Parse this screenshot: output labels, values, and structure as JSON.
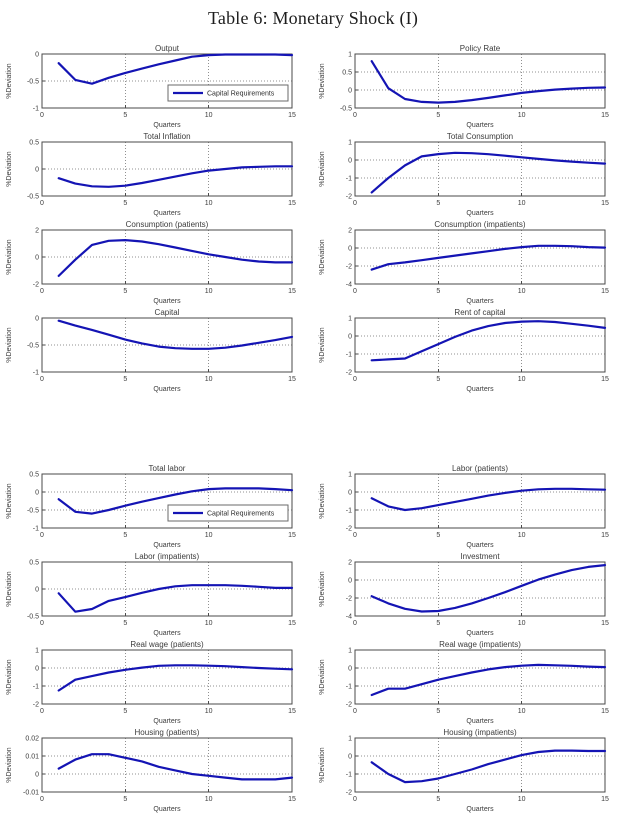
{
  "page": {
    "title": "Table 6: Monetary Shock (I)"
  },
  "legend_label": "Capital Requirements",
  "axis": {
    "xlabel": "Quarters",
    "ylabel": "%Deviation",
    "xlim": [
      0,
      15
    ],
    "xticks": [
      0,
      5,
      10,
      15
    ],
    "xtick_labels": [
      "0",
      "5",
      "10",
      "15"
    ],
    "grid": "dotted"
  },
  "colors": {
    "line": "#1414b4",
    "frame": "#4a4a4a",
    "grid": "#909090",
    "text": "#3c3c3c",
    "legend_border": "#6a6a6a",
    "background": "#ffffff"
  },
  "chart_data": [
    {
      "type": "line",
      "title": "Output",
      "xlabel": "Quarters",
      "ylabel": "%Deviation",
      "x": [
        1,
        2,
        3,
        4,
        5,
        6,
        7,
        8,
        9,
        10,
        11,
        12,
        13,
        14,
        15
      ],
      "values": [
        -0.17,
        -0.48,
        -0.55,
        -0.44,
        -0.35,
        -0.27,
        -0.19,
        -0.12,
        -0.05,
        -0.02,
        -0.01,
        -0.01,
        -0.01,
        -0.01,
        -0.02
      ],
      "ylim": [
        -1,
        0
      ],
      "ytick_vals": [
        0,
        -0.5,
        -1
      ],
      "ytick_labels": [
        "0",
        "-0.5",
        "-1"
      ],
      "legend": true
    },
    {
      "type": "line",
      "title": "Policy Rate",
      "xlabel": "Quarters",
      "ylabel": "%Deviation",
      "x": [
        1,
        2,
        3,
        4,
        5,
        6,
        7,
        8,
        9,
        10,
        11,
        12,
        13,
        14,
        15
      ],
      "values": [
        0.8,
        0.05,
        -0.25,
        -0.33,
        -0.35,
        -0.33,
        -0.28,
        -0.22,
        -0.15,
        -0.08,
        -0.03,
        0.01,
        0.04,
        0.06,
        0.07
      ],
      "ylim": [
        -0.5,
        1
      ],
      "ytick_vals": [
        1,
        0.5,
        0,
        -0.5
      ],
      "ytick_labels": [
        "1",
        "0.5",
        "0",
        "-0.5"
      ],
      "legend": false
    },
    {
      "type": "line",
      "title": "Total Inflation",
      "xlabel": "Quarters",
      "ylabel": "%Deviation",
      "x": [
        1,
        2,
        3,
        4,
        5,
        6,
        7,
        8,
        9,
        10,
        11,
        12,
        13,
        14,
        15
      ],
      "values": [
        -0.17,
        -0.27,
        -0.32,
        -0.33,
        -0.31,
        -0.26,
        -0.2,
        -0.14,
        -0.08,
        -0.03,
        0,
        0.03,
        0.04,
        0.05,
        0.05
      ],
      "ylim": [
        -0.5,
        0.5
      ],
      "ytick_vals": [
        0.5,
        0,
        -0.5
      ],
      "ytick_labels": [
        "0.5",
        "0",
        "-0.5"
      ],
      "legend": false
    },
    {
      "type": "line",
      "title": "Total Consumption",
      "xlabel": "Quarters",
      "ylabel": "%Deviation",
      "x": [
        1,
        2,
        3,
        4,
        5,
        6,
        7,
        8,
        9,
        10,
        11,
        12,
        13,
        14,
        15
      ],
      "values": [
        -1.8,
        -1.0,
        -0.3,
        0.2,
        0.33,
        0.4,
        0.38,
        0.32,
        0.24,
        0.15,
        0.06,
        -0.02,
        -0.09,
        -0.15,
        -0.2
      ],
      "ylim": [
        -2,
        1
      ],
      "ytick_vals": [
        1,
        0,
        -1,
        -2
      ],
      "ytick_labels": [
        "1",
        "0",
        "-1",
        "-2"
      ],
      "legend": false
    },
    {
      "type": "line",
      "title": "Consumption (patients)",
      "xlabel": "Quarters",
      "ylabel": "%Deviation",
      "x": [
        1,
        2,
        3,
        4,
        5,
        6,
        7,
        8,
        9,
        10,
        11,
        12,
        13,
        14,
        15
      ],
      "values": [
        -1.4,
        -0.2,
        0.9,
        1.2,
        1.25,
        1.15,
        0.95,
        0.7,
        0.45,
        0.2,
        0,
        -0.2,
        -0.33,
        -0.4,
        -0.4
      ],
      "ylim": [
        -2,
        2
      ],
      "ytick_vals": [
        2,
        0,
        -2
      ],
      "ytick_labels": [
        "2",
        "0",
        "-2"
      ],
      "legend": false
    },
    {
      "type": "line",
      "title": "Consumption (impatients)",
      "xlabel": "Quarters",
      "ylabel": "%Deviation",
      "x": [
        1,
        2,
        3,
        4,
        5,
        6,
        7,
        8,
        9,
        10,
        11,
        12,
        13,
        14,
        15
      ],
      "values": [
        -2.4,
        -1.8,
        -1.6,
        -1.35,
        -1.1,
        -0.85,
        -0.6,
        -0.35,
        -0.1,
        0.1,
        0.25,
        0.25,
        0.2,
        0.1,
        0.05
      ],
      "ylim": [
        -4,
        2
      ],
      "ytick_vals": [
        2,
        0,
        -2,
        -4
      ],
      "ytick_labels": [
        "2",
        "0",
        "-2",
        "-4"
      ],
      "legend": false
    },
    {
      "type": "line",
      "title": "Capital",
      "xlabel": "Quarters",
      "ylabel": "%Deviation",
      "x": [
        1,
        2,
        3,
        4,
        5,
        6,
        7,
        8,
        9,
        10,
        11,
        12,
        13,
        14,
        15
      ],
      "values": [
        -0.05,
        -0.14,
        -0.22,
        -0.31,
        -0.4,
        -0.47,
        -0.53,
        -0.56,
        -0.57,
        -0.57,
        -0.55,
        -0.51,
        -0.46,
        -0.41,
        -0.35
      ],
      "ylim": [
        -1,
        0
      ],
      "ytick_vals": [
        0,
        -0.5,
        -1
      ],
      "ytick_labels": [
        "0",
        "-0.5",
        "-1"
      ],
      "legend": false
    },
    {
      "type": "line",
      "title": "Rent of capital",
      "xlabel": "Quarters",
      "ylabel": "%Deviation",
      "x": [
        1,
        2,
        3,
        4,
        5,
        6,
        7,
        8,
        9,
        10,
        11,
        12,
        13,
        14,
        15
      ],
      "values": [
        -1.35,
        -1.3,
        -1.25,
        -0.85,
        -0.45,
        -0.05,
        0.3,
        0.55,
        0.72,
        0.8,
        0.82,
        0.78,
        0.68,
        0.57,
        0.45
      ],
      "ylim": [
        -2,
        1
      ],
      "ytick_vals": [
        1,
        0,
        -1,
        -2
      ],
      "ytick_labels": [
        "1",
        "0",
        "-1",
        "-2"
      ],
      "legend": false
    },
    {
      "type": "line",
      "title": "Total labor",
      "xlabel": "Quarters",
      "ylabel": "%Deviation",
      "x": [
        1,
        2,
        3,
        4,
        5,
        6,
        7,
        8,
        9,
        10,
        11,
        12,
        13,
        14,
        15
      ],
      "values": [
        -0.2,
        -0.55,
        -0.6,
        -0.5,
        -0.38,
        -0.27,
        -0.17,
        -0.07,
        0.02,
        0.08,
        0.1,
        0.1,
        0.1,
        0.08,
        0.05
      ],
      "ylim": [
        -1,
        0.5
      ],
      "ytick_vals": [
        0.5,
        0,
        -0.5,
        -1
      ],
      "ytick_labels": [
        "0.5",
        "0",
        "-0.5",
        "-1"
      ],
      "legend": true
    },
    {
      "type": "line",
      "title": "Labor (patients)",
      "xlabel": "Quarters",
      "ylabel": "%Deviation",
      "x": [
        1,
        2,
        3,
        4,
        5,
        6,
        7,
        8,
        9,
        10,
        11,
        12,
        13,
        14,
        15
      ],
      "values": [
        -0.35,
        -0.8,
        -1.0,
        -0.9,
        -0.73,
        -0.55,
        -0.38,
        -0.2,
        -0.05,
        0.07,
        0.15,
        0.18,
        0.18,
        0.15,
        0.13
      ],
      "ylim": [
        -2,
        1
      ],
      "ytick_vals": [
        1,
        0,
        -1,
        -2
      ],
      "ytick_labels": [
        "1",
        "0",
        "-1",
        "-2"
      ],
      "legend": false
    },
    {
      "type": "line",
      "title": "Labor (impatients)",
      "xlabel": "Quarters",
      "ylabel": "%Deviation",
      "x": [
        1,
        2,
        3,
        4,
        5,
        6,
        7,
        8,
        9,
        10,
        11,
        12,
        13,
        14,
        15
      ],
      "values": [
        -0.08,
        -0.42,
        -0.37,
        -0.22,
        -0.15,
        -0.07,
        0,
        0.05,
        0.07,
        0.07,
        0.07,
        0.06,
        0.04,
        0.02,
        0.02
      ],
      "ylim": [
        -0.5,
        0.5
      ],
      "ytick_vals": [
        0.5,
        0,
        -0.5
      ],
      "ytick_labels": [
        "0.5",
        "0",
        "-0.5"
      ],
      "legend": false
    },
    {
      "type": "line",
      "title": "Investment",
      "xlabel": "Quarters",
      "ylabel": "%Deviation",
      "x": [
        1,
        2,
        3,
        4,
        5,
        6,
        7,
        8,
        9,
        10,
        11,
        12,
        13,
        14,
        15
      ],
      "values": [
        -1.8,
        -2.6,
        -3.2,
        -3.5,
        -3.45,
        -3.1,
        -2.6,
        -2.0,
        -1.35,
        -0.65,
        0.05,
        0.6,
        1.1,
        1.45,
        1.65
      ],
      "ylim": [
        -4,
        2
      ],
      "ytick_vals": [
        2,
        0,
        -2,
        -4
      ],
      "ytick_labels": [
        "2",
        "0",
        "-2",
        "-4"
      ],
      "legend": false
    },
    {
      "type": "line",
      "title": "Real wage (patients)",
      "xlabel": "Quarters",
      "ylabel": "%Deviation",
      "x": [
        1,
        2,
        3,
        4,
        5,
        6,
        7,
        8,
        9,
        10,
        11,
        12,
        13,
        14,
        15
      ],
      "values": [
        -1.25,
        -0.65,
        -0.45,
        -0.25,
        -0.1,
        0.02,
        0.12,
        0.15,
        0.15,
        0.13,
        0.1,
        0.05,
        0,
        -0.04,
        -0.07
      ],
      "ylim": [
        -2,
        1
      ],
      "ytick_vals": [
        1,
        0,
        -1,
        -2
      ],
      "ytick_labels": [
        "1",
        "0",
        "-1",
        "-2"
      ],
      "legend": false
    },
    {
      "type": "line",
      "title": "Real wage (impatients)",
      "xlabel": "Quarters",
      "ylabel": "%Deviation",
      "x": [
        1,
        2,
        3,
        4,
        5,
        6,
        7,
        8,
        9,
        10,
        11,
        12,
        13,
        14,
        15
      ],
      "values": [
        -1.5,
        -1.15,
        -1.15,
        -0.9,
        -0.65,
        -0.45,
        -0.25,
        -0.08,
        0.05,
        0.13,
        0.17,
        0.15,
        0.12,
        0.08,
        0.05
      ],
      "ylim": [
        -2,
        1
      ],
      "ytick_vals": [
        1,
        0,
        -1,
        -2
      ],
      "ytick_labels": [
        "1",
        "0",
        "-1",
        "-2"
      ],
      "legend": false
    },
    {
      "type": "line",
      "title": "Housing (patients)",
      "xlabel": "Quarters",
      "ylabel": "%Deviation",
      "x": [
        1,
        2,
        3,
        4,
        5,
        6,
        7,
        8,
        9,
        10,
        11,
        12,
        13,
        14,
        15
      ],
      "values": [
        0.003,
        0.008,
        0.011,
        0.011,
        0.009,
        0.007,
        0.004,
        0.002,
        0,
        -0.001,
        -0.002,
        -0.003,
        -0.003,
        -0.003,
        -0.002
      ],
      "ylim": [
        -0.01,
        0.02
      ],
      "ytick_vals": [
        0.02,
        0.01,
        0,
        -0.01
      ],
      "ytick_labels": [
        "0.02",
        "0.01",
        "0",
        "-0.01"
      ],
      "legend": false
    },
    {
      "type": "line",
      "title": "Housing (impatients)",
      "xlabel": "Quarters",
      "ylabel": "%Deviation",
      "x": [
        1,
        2,
        3,
        4,
        5,
        6,
        7,
        8,
        9,
        10,
        11,
        12,
        13,
        14,
        15
      ],
      "values": [
        -0.35,
        -1.0,
        -1.45,
        -1.4,
        -1.25,
        -1.0,
        -0.75,
        -0.45,
        -0.2,
        0.05,
        0.22,
        0.3,
        0.3,
        0.28,
        0.28
      ],
      "ylim": [
        -2,
        1
      ],
      "ytick_vals": [
        1,
        0,
        -1,
        -2
      ],
      "ytick_labels": [
        "1",
        "0",
        "-1",
        "-2"
      ],
      "legend": false
    }
  ]
}
